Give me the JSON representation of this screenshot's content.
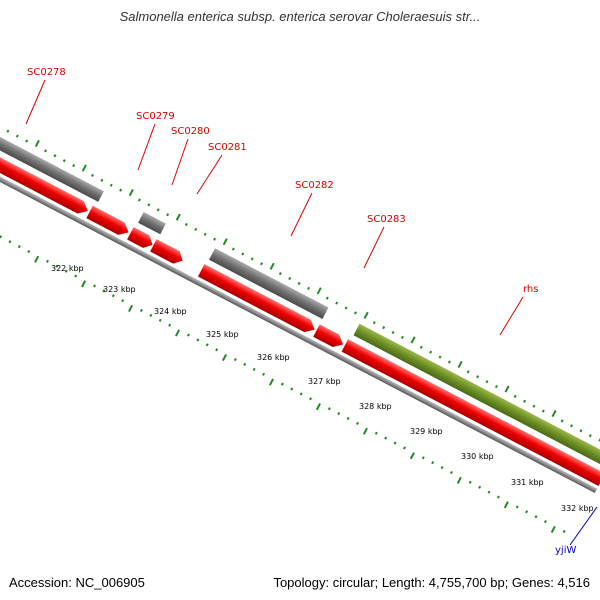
{
  "title": "Salmonella enterica subsp. enterica serovar Choleraesuis str...",
  "footer": {
    "accession": "Accession: NC_006905",
    "summary": "Topology: circular; Length: 4,755,700 bp; Genes: 4,516"
  },
  "colors": {
    "cds": "#ee0000",
    "gene": "#777777",
    "rhs": "#6b8e23",
    "backbone": "#888888",
    "ticks": "#228b22",
    "gene_label": "#dd0000",
    "blue_label": "#0000cc"
  },
  "gene_labels": [
    "SC0278",
    "SC0279",
    "SC0280",
    "SC0281",
    "SC0282",
    "SC0283",
    "rhs"
  ],
  "other_labels": [
    "yjiW"
  ],
  "kbp_labels": [
    "322 kbp",
    "323 kbp",
    "324 kbp",
    "325 kbp",
    "326 kbp",
    "327 kbp",
    "328 kbp",
    "329 kbp",
    "330 kbp",
    "331 kbp",
    "332 kbp"
  ]
}
